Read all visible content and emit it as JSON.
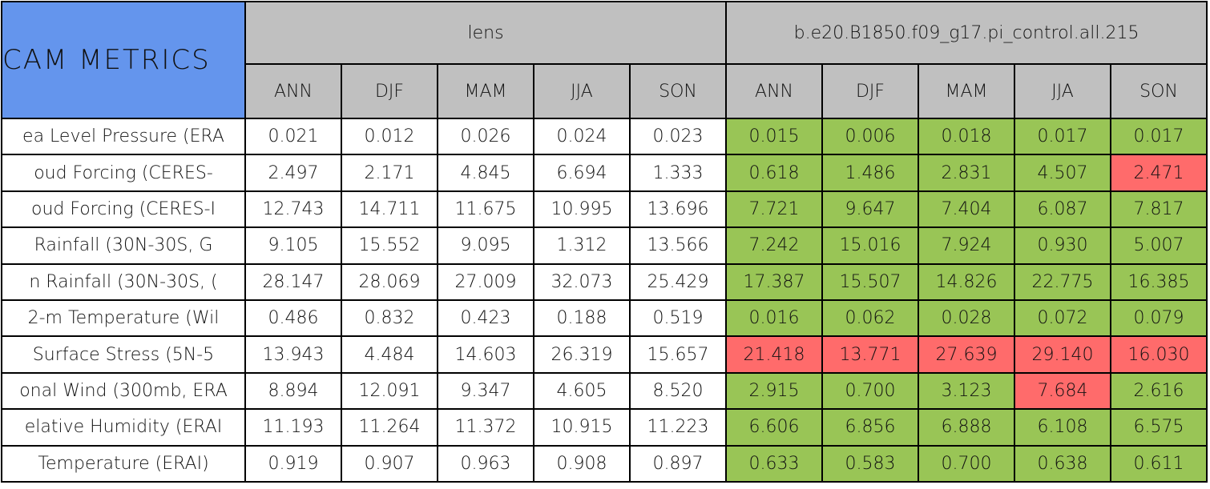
{
  "table": {
    "title": "CAM METRICS",
    "header_color": "#c0c0c0",
    "title_color": "#6495ed",
    "groups": [
      {
        "name": "lens",
        "columns": [
          "ANN",
          "DJF",
          "MAM",
          "JJA",
          "SON"
        ]
      },
      {
        "name": "b.e20.B1850.f09_g17.pi_control.all.215",
        "columns": [
          "ANN",
          "DJF",
          "MAM",
          "JJA",
          "SON"
        ]
      }
    ],
    "rows": [
      {
        "label": "ea Level Pressure (ERA",
        "groups": [
          {
            "values": [
              "0.021",
              "0.012",
              "0.026",
              "0.024",
              "0.023"
            ],
            "colors": [
              "#ffffff",
              "#ffffff",
              "#ffffff",
              "#ffffff",
              "#ffffff"
            ]
          },
          {
            "values": [
              "0.015",
              "0.006",
              "0.018",
              "0.017",
              "0.017"
            ],
            "colors": [
              "#99c556",
              "#99c556",
              "#99c556",
              "#99c556",
              "#99c556"
            ]
          }
        ]
      },
      {
        "label": "oud Forcing (CERES-",
        "groups": [
          {
            "values": [
              "2.497",
              "2.171",
              "4.845",
              "6.694",
              "1.333"
            ],
            "colors": [
              "#ffffff",
              "#ffffff",
              "#ffffff",
              "#ffffff",
              "#ffffff"
            ]
          },
          {
            "values": [
              "0.618",
              "1.486",
              "2.831",
              "4.507",
              "2.471"
            ],
            "colors": [
              "#99c556",
              "#99c556",
              "#99c556",
              "#99c556",
              "#ff6b6b"
            ]
          }
        ]
      },
      {
        "label": "oud Forcing (CERES-I",
        "groups": [
          {
            "values": [
              "12.743",
              "14.711",
              "11.675",
              "10.995",
              "13.696"
            ],
            "colors": [
              "#ffffff",
              "#ffffff",
              "#ffffff",
              "#ffffff",
              "#ffffff"
            ]
          },
          {
            "values": [
              "7.721",
              "9.647",
              "7.404",
              "6.087",
              "7.817"
            ],
            "colors": [
              "#99c556",
              "#99c556",
              "#99c556",
              "#99c556",
              "#99c556"
            ]
          }
        ]
      },
      {
        "label": "Rainfall (30N-30S, G",
        "groups": [
          {
            "values": [
              "9.105",
              "15.552",
              "9.095",
              "1.312",
              "13.566"
            ],
            "colors": [
              "#ffffff",
              "#ffffff",
              "#ffffff",
              "#ffffff",
              "#ffffff"
            ]
          },
          {
            "values": [
              "7.242",
              "15.016",
              "7.924",
              "0.930",
              "5.007"
            ],
            "colors": [
              "#99c556",
              "#99c556",
              "#99c556",
              "#99c556",
              "#99c556"
            ]
          }
        ]
      },
      {
        "label": "n Rainfall (30N-30S, (",
        "groups": [
          {
            "values": [
              "28.147",
              "28.069",
              "27.009",
              "32.073",
              "25.429"
            ],
            "colors": [
              "#ffffff",
              "#ffffff",
              "#ffffff",
              "#ffffff",
              "#ffffff"
            ]
          },
          {
            "values": [
              "17.387",
              "15.507",
              "14.826",
              "22.775",
              "16.385"
            ],
            "colors": [
              "#99c556",
              "#99c556",
              "#99c556",
              "#99c556",
              "#99c556"
            ]
          }
        ]
      },
      {
        "label": "2-m Temperature (Wil",
        "groups": [
          {
            "values": [
              "0.486",
              "0.832",
              "0.423",
              "0.188",
              "0.519"
            ],
            "colors": [
              "#ffffff",
              "#ffffff",
              "#ffffff",
              "#ffffff",
              "#ffffff"
            ]
          },
          {
            "values": [
              "0.016",
              "0.062",
              "0.028",
              "0.072",
              "0.079"
            ],
            "colors": [
              "#99c556",
              "#99c556",
              "#99c556",
              "#99c556",
              "#99c556"
            ]
          }
        ]
      },
      {
        "label": "Surface Stress (5N-5",
        "groups": [
          {
            "values": [
              "13.943",
              "4.484",
              "14.603",
              "26.319",
              "15.657"
            ],
            "colors": [
              "#ffffff",
              "#ffffff",
              "#ffffff",
              "#ffffff",
              "#ffffff"
            ]
          },
          {
            "values": [
              "21.418",
              "13.771",
              "27.639",
              "29.140",
              "16.030"
            ],
            "colors": [
              "#ff6b6b",
              "#ff6b6b",
              "#ff6b6b",
              "#ff6b6b",
              "#ff6b6b"
            ]
          }
        ]
      },
      {
        "label": "onal Wind (300mb, ERA",
        "groups": [
          {
            "values": [
              "8.894",
              "12.091",
              "9.347",
              "4.605",
              "8.520"
            ],
            "colors": [
              "#ffffff",
              "#ffffff",
              "#ffffff",
              "#ffffff",
              "#ffffff"
            ]
          },
          {
            "values": [
              "2.915",
              "0.700",
              "3.123",
              "7.684",
              "2.616"
            ],
            "colors": [
              "#99c556",
              "#99c556",
              "#99c556",
              "#ff6b6b",
              "#99c556"
            ]
          }
        ]
      },
      {
        "label": "elative Humidity (ERAI",
        "groups": [
          {
            "values": [
              "11.193",
              "11.264",
              "11.372",
              "10.915",
              "11.223"
            ],
            "colors": [
              "#ffffff",
              "#ffffff",
              "#ffffff",
              "#ffffff",
              "#ffffff"
            ]
          },
          {
            "values": [
              "6.606",
              "6.856",
              "6.888",
              "6.108",
              "6.575"
            ],
            "colors": [
              "#99c556",
              "#99c556",
              "#99c556",
              "#99c556",
              "#99c556"
            ]
          }
        ]
      },
      {
        "label": "Temperature (ERAI)",
        "groups": [
          {
            "values": [
              "0.919",
              "0.907",
              "0.963",
              "0.908",
              "0.897"
            ],
            "colors": [
              "#ffffff",
              "#ffffff",
              "#ffffff",
              "#ffffff",
              "#ffffff"
            ]
          },
          {
            "values": [
              "0.633",
              "0.583",
              "0.700",
              "0.638",
              "0.611"
            ],
            "colors": [
              "#99c556",
              "#99c556",
              "#99c556",
              "#99c556",
              "#99c556"
            ]
          }
        ]
      }
    ]
  }
}
